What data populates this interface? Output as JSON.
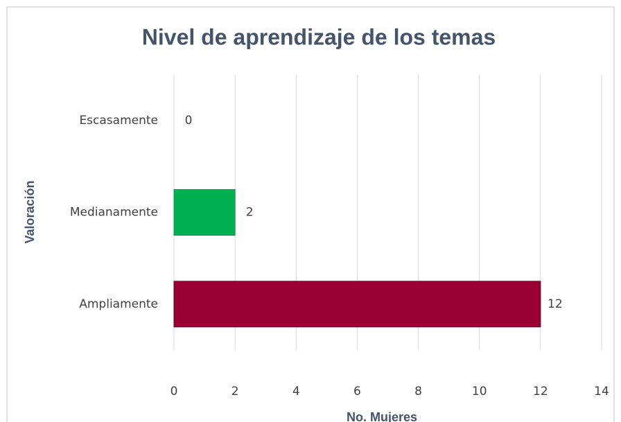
{
  "chart_data": {
    "type": "bar",
    "orientation": "horizontal",
    "title": "Nivel de aprendizaje de los temas",
    "x_label": "No. Mujeres",
    "y_label": "Valoración",
    "categories": [
      "Escasamente",
      "Medianamente",
      "Ampliamente"
    ],
    "values": [
      0,
      2,
      12
    ],
    "colors": [
      "#4472c4",
      "#00b050",
      "#990033"
    ],
    "xlim": [
      0,
      14
    ],
    "xticks": [
      0,
      2,
      4,
      6,
      8,
      10,
      12,
      14
    ],
    "grid": true
  }
}
